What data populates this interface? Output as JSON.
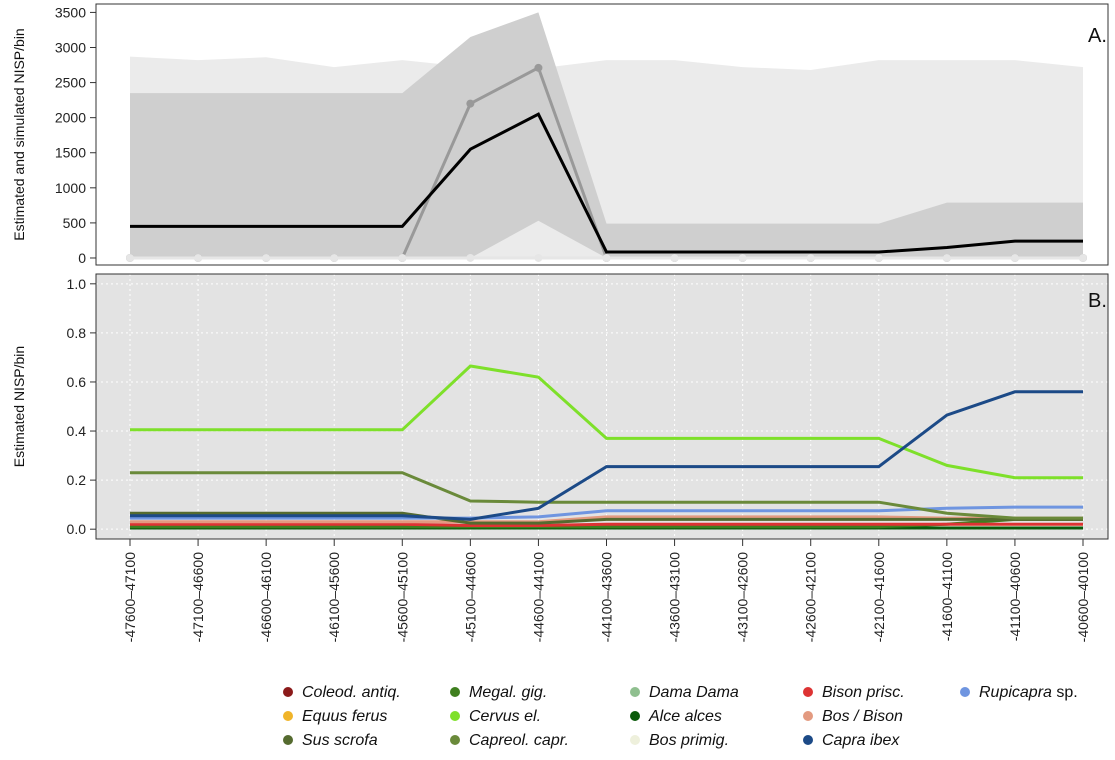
{
  "chart_data": [
    {
      "panel": "A.",
      "type": "line",
      "ylabel": "Estimated and simulated NISP/bin",
      "ylim": [
        -100,
        3620
      ],
      "yticks": [
        0,
        500,
        1000,
        1500,
        2000,
        2500,
        3000,
        3500
      ],
      "grid": false,
      "categories": [
        "-47600–47100",
        "-47100–46600",
        "-46600–46100",
        "-46100–45600",
        "-45600–45100",
        "-45100–44600",
        "-44600–44100",
        "-44100–43600",
        "-43600–43100",
        "-43100–42600",
        "-42600–42100",
        "-42100–41600",
        "-41600–41100",
        "-41100–40600",
        "-40600–40100"
      ],
      "bands": [
        {
          "fill": "#ebebeb",
          "upper": [
            2870,
            2820,
            2860,
            2720,
            2820,
            2720,
            2700,
            2820,
            2820,
            2720,
            2680,
            2820,
            2820,
            2820,
            2720
          ],
          "lower": [
            0,
            0,
            0,
            0,
            0,
            0,
            0,
            0,
            0,
            0,
            0,
            0,
            0,
            0,
            0
          ]
        },
        {
          "fill": "#cfcfcf",
          "upper": [
            2350,
            2350,
            2350,
            2350,
            2350,
            3150,
            3500,
            490,
            490,
            490,
            490,
            490,
            790,
            790,
            790
          ],
          "lower": [
            0,
            0,
            0,
            0,
            0,
            0,
            530,
            0,
            0,
            0,
            0,
            0,
            0,
            0,
            0
          ]
        }
      ],
      "series": [
        {
          "color": "#999999",
          "marker": true,
          "values": [
            0,
            0,
            0,
            0,
            0,
            2200,
            2710,
            0,
            0,
            0,
            0,
            0,
            0,
            0,
            0
          ]
        },
        {
          "color": "#e6e6e6",
          "marker": true,
          "values": [
            0,
            0,
            0,
            0,
            0,
            0,
            0,
            0,
            0,
            0,
            0,
            0,
            0,
            0,
            0
          ]
        },
        {
          "color": "#000000",
          "marker": false,
          "values": [
            450,
            450,
            450,
            450,
            450,
            1550,
            2050,
            85,
            85,
            85,
            85,
            85,
            150,
            240,
            240
          ]
        }
      ]
    },
    {
      "panel": "B.",
      "type": "line",
      "ylabel": "Estimated NISP/bin",
      "ylim": [
        -0.04,
        1.04
      ],
      "yticks": [
        0.0,
        0.2,
        0.4,
        0.6,
        0.8,
        1.0
      ],
      "ytick_labels": [
        "0.0",
        "0.2",
        "0.4",
        "0.6",
        "0.8",
        "1.0"
      ],
      "grid": true,
      "categories": [
        "-47600–47100",
        "-47100–46600",
        "-46600–46100",
        "-46100–45600",
        "-45600–45100",
        "-45100–44600",
        "-44600–44100",
        "-44100–43600",
        "-43600–43100",
        "-43100–42600",
        "-42600–42100",
        "-42100–41600",
        "-41600–41100",
        "-41100–40600",
        "-40600–40100"
      ],
      "series": [
        {
          "name": "Coleod. antiq.",
          "color": "#8b1a1a",
          "values": [
            0.005,
            0.005,
            0.005,
            0.005,
            0.005,
            0.005,
            0.005,
            0.005,
            0.005,
            0.005,
            0.005,
            0.005,
            0.005,
            0.005,
            0.005
          ]
        },
        {
          "name": "Equus ferus",
          "color": "#f0b429",
          "values": [
            0.005,
            0.005,
            0.005,
            0.005,
            0.005,
            0.005,
            0.005,
            0.005,
            0.005,
            0.005,
            0.005,
            0.005,
            0.005,
            0.005,
            0.005
          ]
        },
        {
          "name": "Dama Dama",
          "color": "#8fbf8f",
          "values": [
            0.015,
            0.015,
            0.015,
            0.015,
            0.015,
            0.01,
            0.01,
            0.015,
            0.015,
            0.015,
            0.015,
            0.015,
            0.015,
            0.015,
            0.015
          ]
        },
        {
          "name": "Bos primig.",
          "color": "#eef0dc",
          "values": [
            0.01,
            0.01,
            0.01,
            0.01,
            0.01,
            0.01,
            0.01,
            0.01,
            0.01,
            0.01,
            0.01,
            0.01,
            0.01,
            0.01,
            0.01
          ]
        },
        {
          "name": "Alce alces",
          "color": "#0b5a0b",
          "values": [
            0.005,
            0.005,
            0.005,
            0.005,
            0.005,
            0.005,
            0.005,
            0.005,
            0.005,
            0.005,
            0.005,
            0.005,
            0.005,
            0.005,
            0.005
          ]
        },
        {
          "name": "Megal. gig.",
          "color": "#3f7f1f",
          "values": [
            0.01,
            0.01,
            0.01,
            0.01,
            0.01,
            0.01,
            0.01,
            0.01,
            0.01,
            0.01,
            0.01,
            0.01,
            0.02,
            0.04,
            0.04
          ]
        },
        {
          "name": "Bison prisc.",
          "color": "#dd3333",
          "values": [
            0.02,
            0.02,
            0.02,
            0.02,
            0.02,
            0.015,
            0.015,
            0.02,
            0.02,
            0.02,
            0.02,
            0.02,
            0.02,
            0.02,
            0.02
          ]
        },
        {
          "name": "Bos / Bison",
          "color": "#e39a80",
          "values": [
            0.03,
            0.03,
            0.03,
            0.03,
            0.03,
            0.03,
            0.03,
            0.05,
            0.05,
            0.05,
            0.05,
            0.05,
            0.045,
            0.045,
            0.045
          ]
        },
        {
          "name": "Sus scrofa",
          "color": "#556b2f",
          "values": [
            0.065,
            0.065,
            0.065,
            0.065,
            0.065,
            0.025,
            0.025,
            0.04,
            0.04,
            0.04,
            0.04,
            0.04,
            0.04,
            0.04,
            0.04
          ]
        },
        {
          "name": "Rupicapra sp.",
          "color": "#6f95e0",
          "values": [
            0.045,
            0.045,
            0.045,
            0.045,
            0.045,
            0.045,
            0.05,
            0.075,
            0.075,
            0.075,
            0.075,
            0.075,
            0.085,
            0.09,
            0.09
          ]
        },
        {
          "name": "Capreol. capr.",
          "color": "#6a8a3a",
          "values": [
            0.23,
            0.23,
            0.23,
            0.23,
            0.23,
            0.115,
            0.11,
            0.11,
            0.11,
            0.11,
            0.11,
            0.11,
            0.065,
            0.045,
            0.045
          ]
        },
        {
          "name": "Cervus el.",
          "color": "#7ee02a",
          "values": [
            0.405,
            0.405,
            0.405,
            0.405,
            0.405,
            0.665,
            0.62,
            0.37,
            0.37,
            0.37,
            0.37,
            0.37,
            0.26,
            0.21,
            0.21
          ]
        },
        {
          "name": "Capra ibex",
          "color": "#1c4a87",
          "values": [
            0.055,
            0.055,
            0.055,
            0.055,
            0.055,
            0.04,
            0.085,
            0.255,
            0.255,
            0.255,
            0.255,
            0.255,
            0.465,
            0.56,
            0.56
          ]
        }
      ]
    }
  ],
  "legend": {
    "placement": "bottom",
    "columns": [
      [
        {
          "name": "Coleod. antiq.",
          "italic": "Coleod. antiq.",
          "plain": "",
          "color": "#8b1a1a"
        },
        {
          "name": "Equus ferus",
          "italic": "Equus ferus",
          "plain": "",
          "color": "#f0b429"
        },
        {
          "name": "Sus scrofa",
          "italic": "Sus scrofa",
          "plain": "",
          "color": "#556b2f"
        }
      ],
      [
        {
          "name": "Megal. gig.",
          "italic": "Megal. gig.",
          "plain": "",
          "color": "#3f7f1f"
        },
        {
          "name": "Cervus el.",
          "italic": "Cervus el.",
          "plain": "",
          "color": "#7ee02a"
        },
        {
          "name": "Capreol. capr.",
          "italic": "Capreol. capr.",
          "plain": "",
          "color": "#6a8a3a"
        }
      ],
      [
        {
          "name": "Dama Dama",
          "italic": "Dama Dama",
          "plain": "",
          "color": "#8fbf8f"
        },
        {
          "name": "Alce alces",
          "italic": "Alce alces",
          "plain": "",
          "color": "#0b5a0b"
        },
        {
          "name": "Bos primig.",
          "italic": "Bos primig.",
          "plain": "",
          "color": "#eef0dc"
        }
      ],
      [
        {
          "name": "Bison prisc.",
          "italic": "Bison prisc.",
          "plain": "",
          "color": "#dd3333"
        },
        {
          "name": "Bos / Bison",
          "italic": "Bos / Bison",
          "plain": "",
          "color": "#e39a80"
        },
        {
          "name": "Capra ibex",
          "italic": "Capra ibex",
          "plain": "",
          "color": "#1c4a87"
        }
      ],
      [
        {
          "name": "Rupicapra sp.",
          "italic": "Rupicapra",
          "plain": " sp.",
          "color": "#6f95e0"
        }
      ]
    ]
  }
}
